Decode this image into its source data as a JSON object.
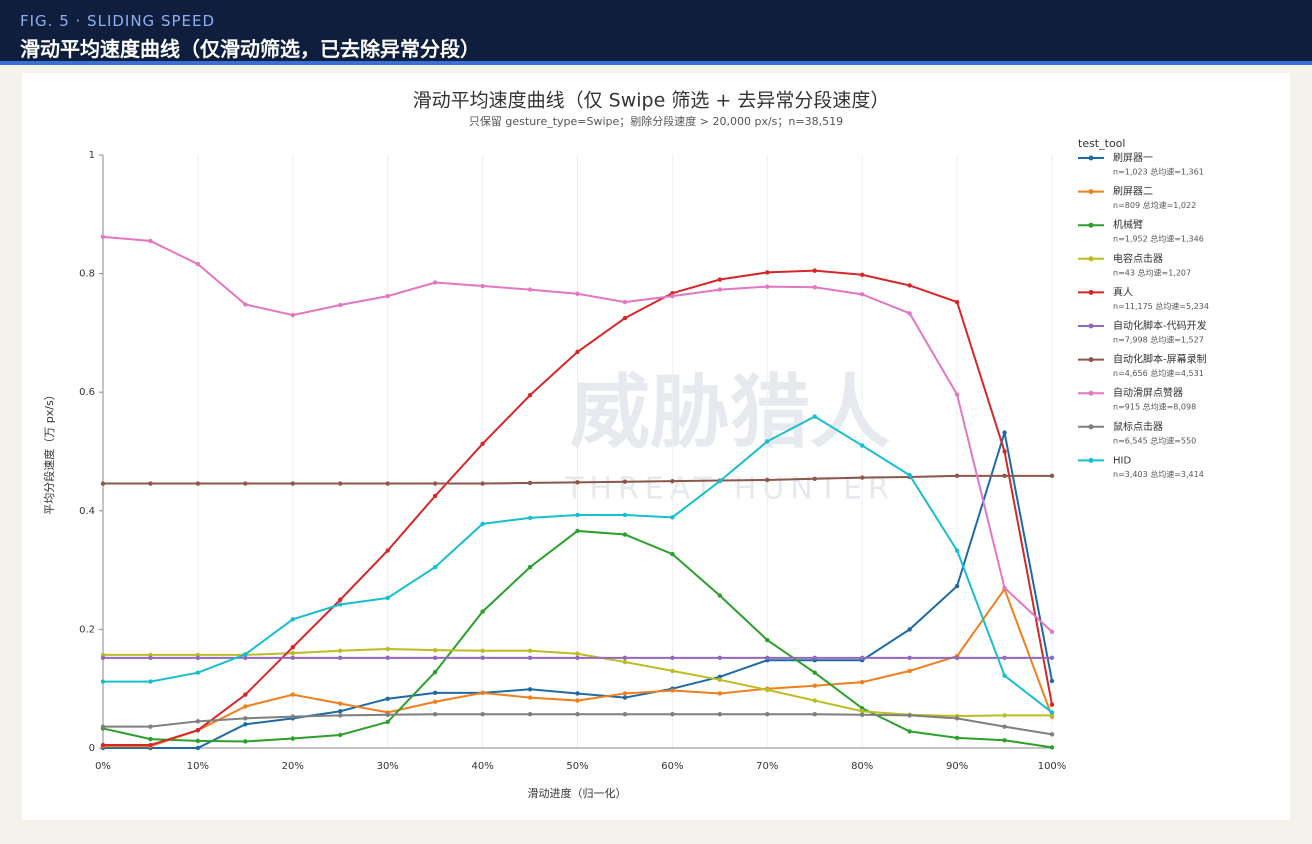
{
  "header": {
    "kicker": "FIG. 5 · SLIDING SPEED",
    "title": "滑动平均速度曲线（仅滑动筛选，已去除异常分段）"
  },
  "chart_data": {
    "type": "line",
    "title": "滑动平均速度曲线（仅 Swipe 筛选 + 去异常分段速度）",
    "subtitle": "只保留 gesture_type=Swipe；剔除分段速度 > 20,000 px/s；n=38,519",
    "x_label": "滑动进度（归一化）",
    "y_label": "平均分段速度（万 px/s）",
    "watermark": "威胁猎人",
    "watermark_sub": "THREAT HUNTER",
    "legend_title": "test_tool",
    "legend": "right",
    "grid": "x",
    "x": [
      0,
      5,
      10,
      15,
      20,
      25,
      30,
      35,
      40,
      45,
      50,
      55,
      60,
      65,
      70,
      75,
      80,
      85,
      90,
      95,
      100
    ],
    "xlim": [
      0,
      100
    ],
    "xticks": [
      {
        "value": 0,
        "label": "0%"
      },
      {
        "value": 10,
        "label": "10%"
      },
      {
        "value": 20,
        "label": "20%"
      },
      {
        "value": 30,
        "label": "30%"
      },
      {
        "value": 40,
        "label": "40%"
      },
      {
        "value": 50,
        "label": "50%"
      },
      {
        "value": 60,
        "label": "60%"
      },
      {
        "value": 70,
        "label": "70%"
      },
      {
        "value": 80,
        "label": "80%"
      },
      {
        "value": 90,
        "label": "90%"
      },
      {
        "value": 100,
        "label": "100%"
      }
    ],
    "ylim": [
      0,
      1
    ],
    "yticks": [
      0,
      0.2,
      0.4,
      0.6,
      0.8,
      1
    ],
    "series": [
      {
        "name": "刷屏器一",
        "detail": "n=1,023  总均速=1,361",
        "color": "#1f6aa5",
        "values": [
          0,
          0,
          0,
          0.04,
          0.05,
          0.062,
          0.083,
          0.093,
          0.093,
          0.099,
          0.092,
          0.085,
          0.1,
          0.12,
          0.148,
          0.148,
          0.148,
          0.2,
          0.273,
          0.532,
          0.113
        ]
      },
      {
        "name": "刷屏器二",
        "detail": "n=809  总均速=1,022",
        "color": "#f07f1c",
        "values": [
          0.003,
          0.003,
          0.03,
          0.07,
          0.09,
          0.075,
          0.06,
          0.078,
          0.093,
          0.085,
          0.08,
          0.092,
          0.097,
          0.092,
          0.1,
          0.105,
          0.111,
          0.13,
          0.155,
          0.268,
          0.053
        ]
      },
      {
        "name": "机械臂",
        "detail": "n=1,952  总均速=1,346",
        "color": "#2ca02c",
        "values": [
          0.033,
          0.015,
          0.012,
          0.011,
          0.016,
          0.022,
          0.044,
          0.128,
          0.23,
          0.305,
          0.366,
          0.36,
          0.327,
          0.257,
          0.182,
          0.127,
          0.067,
          0.028,
          0.017,
          0.013,
          0.001
        ]
      },
      {
        "name": "电容点击器",
        "detail": "n=43  总均速=1,207",
        "color": "#bcbd22",
        "values": [
          0.157,
          0.157,
          0.157,
          0.157,
          0.16,
          0.164,
          0.167,
          0.165,
          0.164,
          0.164,
          0.159,
          0.145,
          0.13,
          0.115,
          0.098,
          0.08,
          0.062,
          0.056,
          0.054,
          0.055,
          0.055
        ]
      },
      {
        "name": "真人",
        "detail": "n=11,175  总均速=5,234",
        "color": "#d62728",
        "values": [
          0.005,
          0.005,
          0.03,
          0.09,
          0.17,
          0.25,
          0.333,
          0.425,
          0.513,
          0.595,
          0.668,
          0.725,
          0.767,
          0.79,
          0.802,
          0.805,
          0.798,
          0.78,
          0.752,
          0.5,
          0.073
        ]
      },
      {
        "name": "自动化脚本-代码开发",
        "detail": "n=7,998  总均速=1,527",
        "color": "#9467bd",
        "values": [
          0.152,
          0.152,
          0.152,
          0.152,
          0.152,
          0.152,
          0.152,
          0.152,
          0.152,
          0.152,
          0.152,
          0.152,
          0.152,
          0.152,
          0.152,
          0.152,
          0.152,
          0.152,
          0.152,
          0.152,
          0.152
        ]
      },
      {
        "name": "自动化脚本-屏幕录制",
        "detail": "n=4,656  总均速=4,531",
        "color": "#8c564b",
        "values": [
          0.446,
          0.446,
          0.446,
          0.446,
          0.446,
          0.446,
          0.446,
          0.446,
          0.446,
          0.447,
          0.448,
          0.449,
          0.45,
          0.451,
          0.452,
          0.454,
          0.456,
          0.457,
          0.459,
          0.459,
          0.459
        ]
      },
      {
        "name": "自动滑屏点赞器",
        "detail": "n=915  总均速=8,098",
        "color": "#e377c2",
        "values": [
          0.862,
          0.855,
          0.816,
          0.748,
          0.73,
          0.747,
          0.762,
          0.785,
          0.779,
          0.773,
          0.766,
          0.752,
          0.762,
          0.773,
          0.778,
          0.777,
          0.765,
          0.733,
          0.596,
          0.27,
          0.196
        ]
      },
      {
        "name": "鼠标点击器",
        "detail": "n=6,545  总均速=550",
        "color": "#7f7f7f",
        "values": [
          0.036,
          0.036,
          0.045,
          0.05,
          0.053,
          0.055,
          0.056,
          0.057,
          0.057,
          0.057,
          0.057,
          0.057,
          0.057,
          0.057,
          0.057,
          0.057,
          0.056,
          0.055,
          0.05,
          0.036,
          0.023
        ]
      },
      {
        "name": "HID",
        "detail": "n=3,403  总均速=3,414",
        "color": "#17becf",
        "values": [
          0.112,
          0.112,
          0.127,
          0.158,
          0.217,
          0.242,
          0.253,
          0.305,
          0.378,
          0.388,
          0.393,
          0.393,
          0.389,
          0.45,
          0.517,
          0.559,
          0.51,
          0.46,
          0.333,
          0.122,
          0.06
        ]
      }
    ]
  }
}
